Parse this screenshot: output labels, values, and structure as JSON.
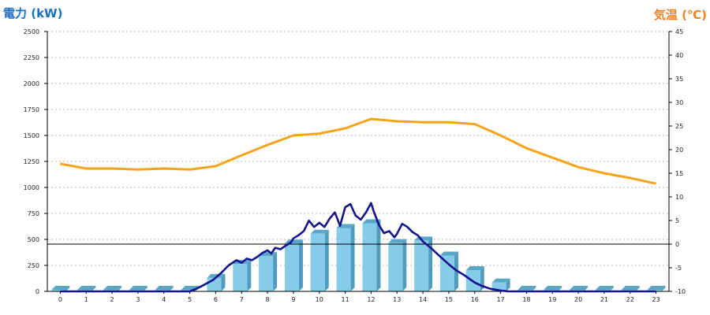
{
  "chart_data": {
    "type": "bar+line",
    "left_axis": {
      "label": "電力 (kW)",
      "color": "#1a6fc0",
      "range": [
        0,
        2500
      ],
      "ticks": [
        0,
        250,
        500,
        750,
        1000,
        1250,
        1500,
        1750,
        2000,
        2250,
        2500
      ],
      "tick_labels": [
        "0",
        "250",
        "500",
        "750",
        "1000",
        "1250",
        "1500",
        "1750",
        "2000",
        "2250",
        "2500"
      ]
    },
    "right_axis": {
      "label": "気温 (℃)",
      "color": "#f08020",
      "range": [
        -10,
        45
      ],
      "ticks": [
        -10,
        -5,
        0,
        5,
        10,
        15,
        20,
        25,
        30,
        35,
        40,
        45
      ],
      "tick_labels": [
        "-10",
        "-5",
        "0",
        "5",
        "10",
        "15",
        "20",
        "25",
        "30",
        "35",
        "40",
        "45"
      ]
    },
    "categories": [
      "0",
      "1",
      "2",
      "3",
      "4",
      "5",
      "6",
      "7",
      "8",
      "9",
      "10",
      "11",
      "12",
      "13",
      "14",
      "15",
      "16",
      "17",
      "18",
      "19",
      "20",
      "21",
      "22",
      "23"
    ],
    "grid": true,
    "zero_line_temperature": 0,
    "series": [
      {
        "type": "bar",
        "axis": "left",
        "color": "#86cbea",
        "values": [
          0,
          0,
          0,
          0,
          0,
          0,
          130,
          265,
          340,
          460,
          555,
          610,
          655,
          465,
          490,
          345,
          205,
          85,
          0,
          0,
          0,
          0,
          0,
          0
        ]
      },
      {
        "type": "line",
        "axis": "left",
        "color": "#14148c",
        "x": [
          0,
          5,
          5.3,
          5.6,
          5.9,
          6.2,
          6.5,
          6.8,
          7.0,
          7.2,
          7.4,
          7.6,
          7.8,
          8.0,
          8.15,
          8.3,
          8.5,
          8.7,
          8.9,
          9.0,
          9.2,
          9.4,
          9.6,
          9.8,
          10.0,
          10.2,
          10.4,
          10.6,
          10.8,
          11.0,
          11.2,
          11.4,
          11.6,
          11.8,
          12.0,
          12.1,
          12.3,
          12.5,
          12.7,
          12.9,
          13.0,
          13.2,
          13.4,
          13.6,
          13.8,
          14.0,
          14.3,
          14.6,
          15.0,
          15.3,
          15.6,
          16.0,
          16.3,
          16.6,
          17.0,
          17.3,
          17.6,
          18.0,
          23
        ],
        "y": [
          0,
          0,
          30,
          70,
          110,
          175,
          250,
          300,
          275,
          315,
          300,
          330,
          370,
          395,
          365,
          420,
          405,
          440,
          470,
          510,
          540,
          580,
          680,
          620,
          660,
          620,
          700,
          760,
          630,
          810,
          840,
          730,
          690,
          760,
          850,
          770,
          640,
          560,
          580,
          520,
          555,
          650,
          620,
          570,
          540,
          480,
          420,
          350,
          260,
          200,
          155,
          85,
          50,
          25,
          8,
          0,
          0,
          0,
          0
        ]
      },
      {
        "type": "line",
        "axis": "right",
        "color": "#f5a31a",
        "values": [
          17,
          16,
          16,
          15.8,
          16,
          15.8,
          16.5,
          18.8,
          21,
          23,
          23.4,
          24.5,
          26.5,
          26,
          25.8,
          25.8,
          25.4,
          23,
          20.3,
          18.3,
          16.3,
          15,
          14,
          12.8
        ]
      }
    ]
  }
}
